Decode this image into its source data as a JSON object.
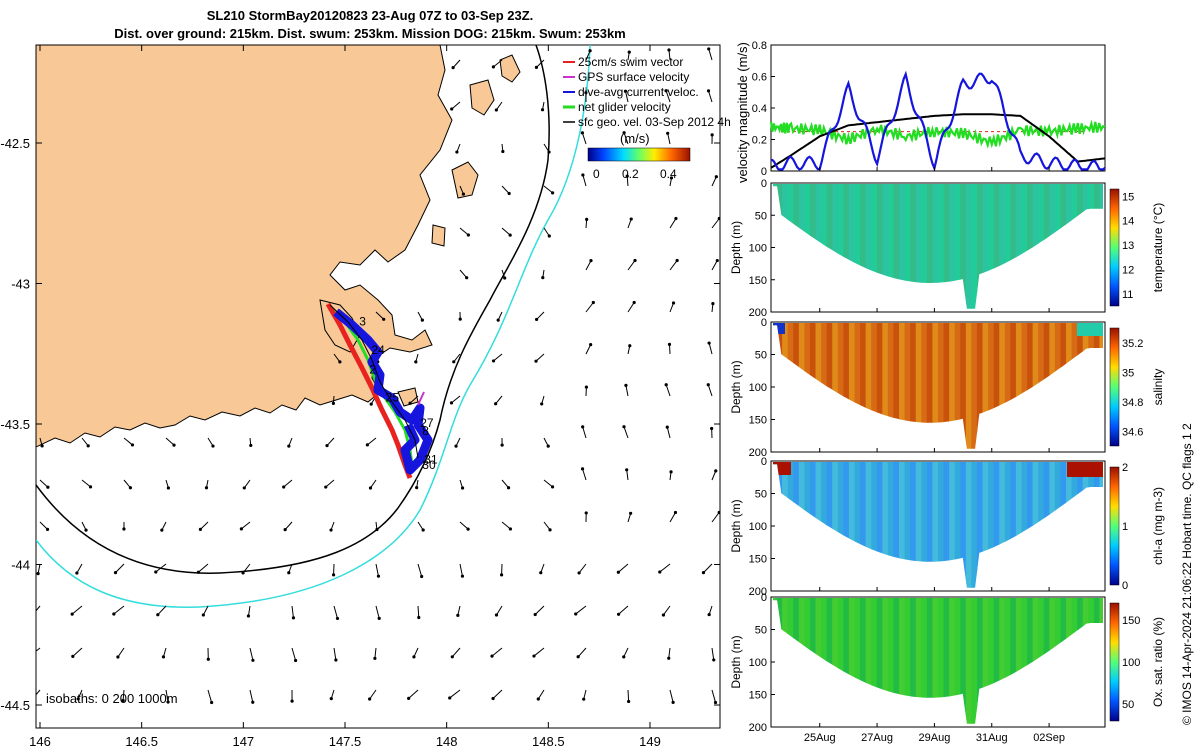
{
  "title_line1": "SL210 StormBay20120823 23-Aug 07Z to 03-Sep 23Z.",
  "title_line2": "Dist. over ground: 215km. Dist. swum: 253km. Mission DOG: 215km. Swum: 253km",
  "map": {
    "x_ticks": [
      "146",
      "146.5",
      "147",
      "147.5",
      "148",
      "148.5",
      "149"
    ],
    "y_ticks": [
      "-42.5",
      "-43",
      "-43.5",
      "-44",
      "-44.5"
    ],
    "legend": [
      "25cm/s swim vector",
      "GPS surface velocity",
      "dive-avg current veloc.",
      "net glider velocity",
      "sfc geo. vel. 03-Sep 2012 4h"
    ],
    "colorbar": {
      "label": "(m/s)",
      "ticks": [
        "0",
        "0.2",
        "0.4"
      ]
    },
    "isobaths_label": "isobaths: 0   200  1000m",
    "day_labels": [
      {
        "text": "3",
        "lon": 147.57,
        "lat": -43.15
      },
      {
        "text": "24",
        "lon": 147.63,
        "lat": -43.25
      },
      {
        "text": "2",
        "lon": 147.62,
        "lat": -43.32
      },
      {
        "text": "25",
        "lon": 147.7,
        "lat": -43.42
      },
      {
        "text": "27",
        "lon": 147.87,
        "lat": -43.51
      },
      {
        "text": "8",
        "lon": 147.88,
        "lat": -43.54
      },
      {
        "text": "31",
        "lon": 147.89,
        "lat": -43.64
      },
      {
        "text": "30",
        "lon": 147.88,
        "lat": -43.66
      }
    ],
    "colors": {
      "land": "#f8c896",
      "coast200": "#000000",
      "coast1000": "#33dddd",
      "swim": "#e8221e",
      "gps": "#cc33cc",
      "current": "#1515dd",
      "net": "#22dd22"
    }
  },
  "chart_data": [
    {
      "type": "line",
      "ylabel": "velocity magnitude (m/s)",
      "ylim": [
        0,
        0.8
      ],
      "y_ticks": [
        "0",
        "0.2",
        "0.4",
        "0.6",
        "0.8"
      ],
      "xlim": [
        23.3,
        34.95
      ],
      "series": [
        {
          "color": "#22dd22",
          "x": [
            23.3,
            24,
            25,
            26,
            27,
            28,
            29,
            30,
            31,
            32,
            33,
            34,
            34.95
          ],
          "values": [
            0.28,
            0.27,
            0.26,
            0.2,
            0.27,
            0.22,
            0.25,
            0.24,
            0.18,
            0.26,
            0.25,
            0.27,
            0.28
          ]
        },
        {
          "color": "#000000",
          "x": [
            23.3,
            24,
            25,
            26,
            27,
            28,
            29,
            30,
            31,
            32,
            33,
            34,
            34.95
          ],
          "values": [
            0.02,
            0.1,
            0.22,
            0.29,
            0.31,
            0.33,
            0.35,
            0.36,
            0.36,
            0.35,
            0.22,
            0.06,
            0.08
          ]
        },
        {
          "color": "#1515dd",
          "x": [
            23.3,
            24,
            25,
            26,
            27,
            28,
            29,
            30,
            31,
            32,
            33,
            34,
            34.95
          ],
          "values": [
            0.03,
            0.05,
            0.05,
            0.52,
            0.08,
            0.58,
            0.05,
            0.55,
            0.6,
            0.1,
            0.05,
            0.03,
            0.02
          ]
        }
      ]
    },
    {
      "type": "heatmap",
      "colorbar_label": "temperature (°C)",
      "colorbar_ticks": [
        "11",
        "12",
        "13",
        "14",
        "15"
      ],
      "clim": [
        10.5,
        15.3
      ],
      "ylabel": "Depth (m)",
      "y_ticks": [
        "0",
        "50",
        "100",
        "150",
        "200"
      ],
      "ylim": [
        200,
        0
      ],
      "dominant_value": 12.6
    },
    {
      "type": "heatmap",
      "colorbar_label": "salinity",
      "colorbar_ticks": [
        "34.6",
        "34.8",
        "35",
        "35.2"
      ],
      "clim": [
        34.5,
        35.3
      ],
      "ylabel": "Depth (m)",
      "y_ticks": [
        "0",
        "50",
        "100",
        "150",
        "200"
      ],
      "ylim": [
        200,
        0
      ],
      "dominant_value": 35.1
    },
    {
      "type": "heatmap",
      "colorbar_label": "chl-a (mg m-3)",
      "colorbar_ticks": [
        "0",
        "1",
        "2"
      ],
      "clim": [
        0,
        2
      ],
      "ylabel": "Depth (m)",
      "y_ticks": [
        "0",
        "50",
        "100",
        "150",
        "200"
      ],
      "ylim": [
        200,
        0
      ],
      "dominant_value": 0.7
    },
    {
      "type": "heatmap",
      "colorbar_label": "Ox. sat. ratio (%)",
      "colorbar_ticks": [
        "50",
        "100",
        "150"
      ],
      "clim": [
        30,
        170
      ],
      "ylabel": "Depth (m)",
      "y_ticks": [
        "0",
        "50",
        "100",
        "150",
        "200"
      ],
      "ylim": [
        200,
        0
      ],
      "dominant_value": 105
    }
  ],
  "section_x_ticks": [
    "25Aug",
    "27Aug",
    "29Aug",
    "31Aug",
    "02Sep"
  ],
  "credit": "© IMOS 14-Apr-2024 21:06:22 Hobart time. QC flags 1  2"
}
